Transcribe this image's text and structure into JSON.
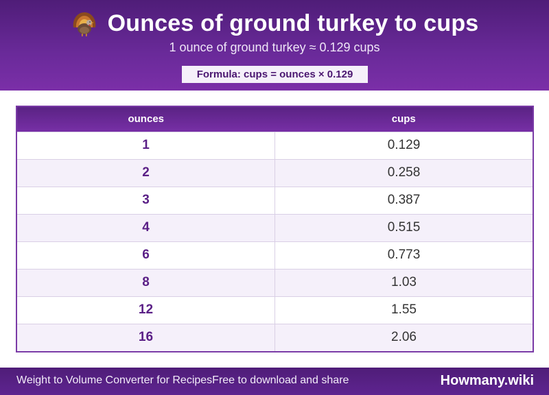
{
  "header": {
    "icon": "turkey-icon",
    "title": "Ounces of ground turkey to cups",
    "subtitle": "1 ounce of ground turkey ≈ 0.129 cups",
    "formula": "Formula: cups = ounces × 0.129"
  },
  "table": {
    "columns": [
      "ounces",
      "cups"
    ],
    "rows": [
      {
        "ounces": "1",
        "cups": "0.129"
      },
      {
        "ounces": "2",
        "cups": "0.258"
      },
      {
        "ounces": "3",
        "cups": "0.387"
      },
      {
        "ounces": "4",
        "cups": "0.515"
      },
      {
        "ounces": "6",
        "cups": "0.773"
      },
      {
        "ounces": "8",
        "cups": "1.03"
      },
      {
        "ounces": "12",
        "cups": "1.55"
      },
      {
        "ounces": "16",
        "cups": "2.06"
      }
    ]
  },
  "footer": {
    "text": "Weight to Volume Converter for RecipesFree to download and share",
    "brand": "Howmany.wiki"
  },
  "colors": {
    "header_bg": "#6a2a9a",
    "accent": "#5a1f86",
    "row_alt": "#f5f0fa"
  }
}
